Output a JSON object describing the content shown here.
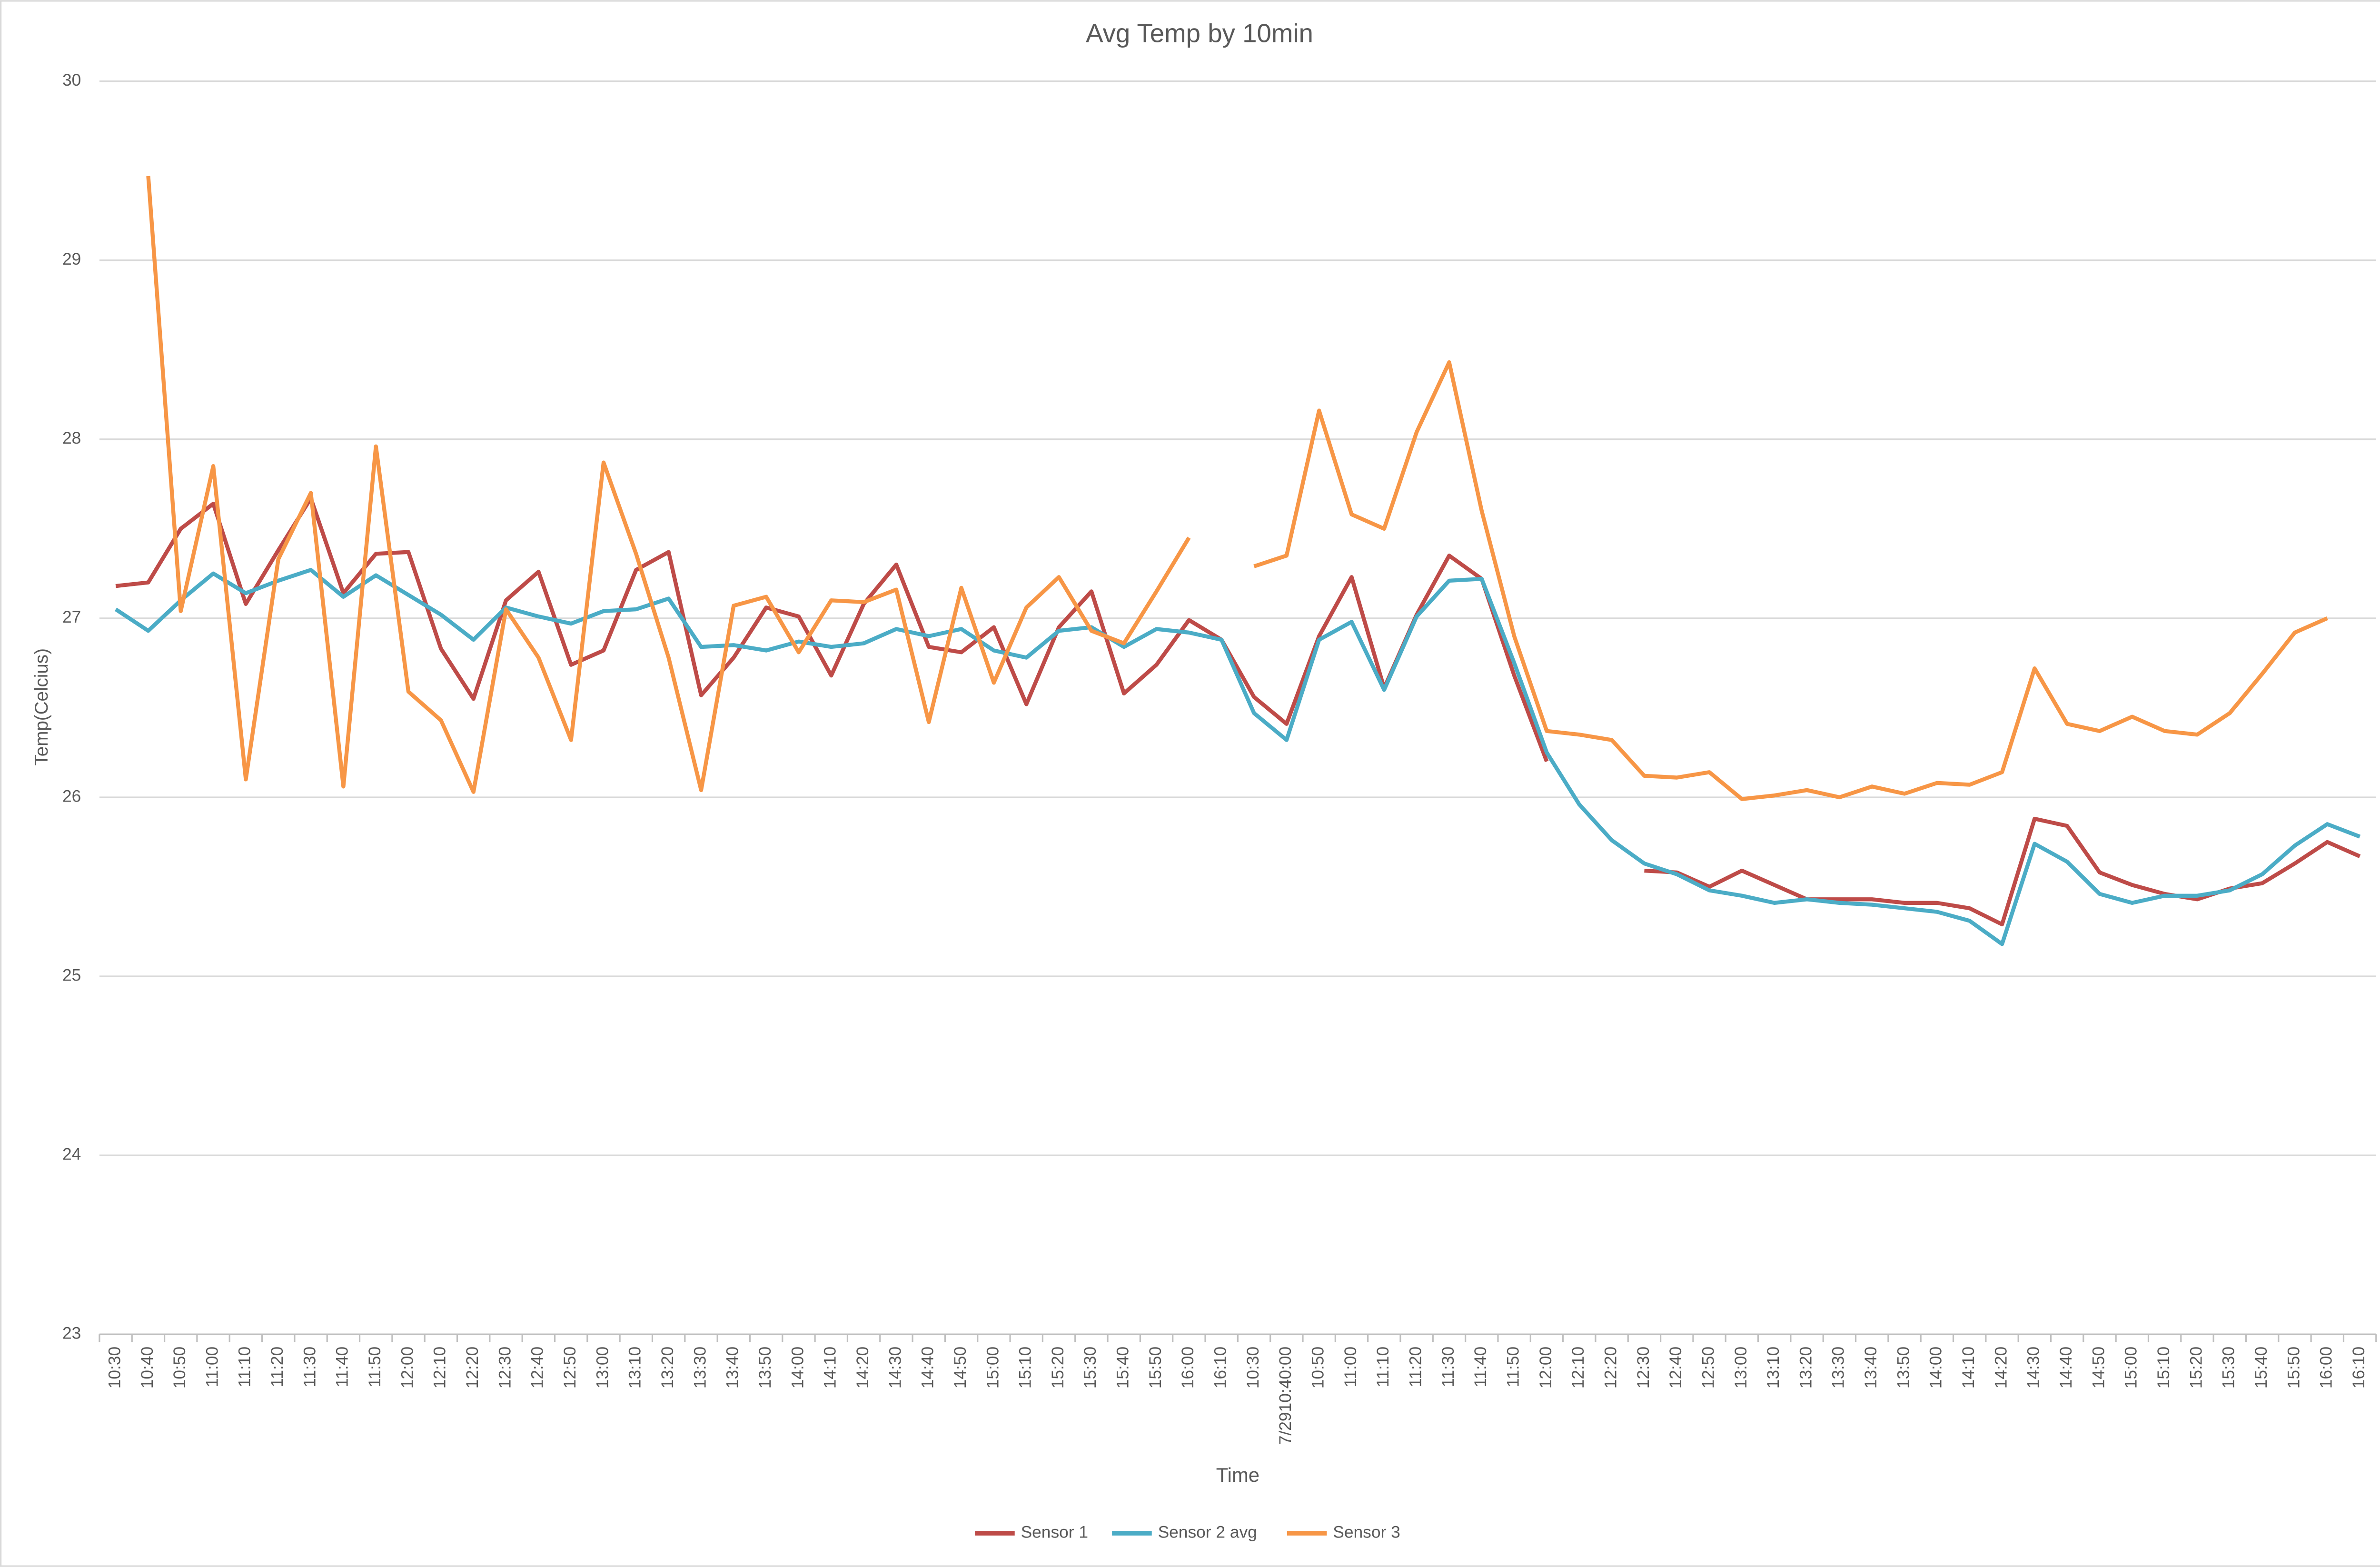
{
  "chart_data": {
    "type": "line",
    "title": "Avg Temp by 10min",
    "x_label": "Time",
    "y_label": "Temp(Celcius)",
    "categories": [
      "10:30",
      "10:40",
      "10:50",
      "11:00",
      "11:10",
      "11:20",
      "11:30",
      "11:40",
      "11:50",
      "12:00",
      "12:10",
      "12:20",
      "12:30",
      "12:40",
      "12:50",
      "13:00",
      "13:10",
      "13:20",
      "13:30",
      "13:40",
      "13:50",
      "14:00",
      "14:10",
      "14:20",
      "14:30",
      "14:40",
      "14:50",
      "15:00",
      "15:10",
      "15:20",
      "15:30",
      "15:40",
      "15:50",
      "16:00",
      "16:10",
      "10:30",
      "7/2910:40:00",
      "10:50",
      "11:00",
      "11:10",
      "11:20",
      "11:30",
      "11:40",
      "11:50",
      "12:00",
      "12:10",
      "12:20",
      "12:30",
      "12:40",
      "12:50",
      "13:00",
      "13:10",
      "13:20",
      "13:30",
      "13:40",
      "13:50",
      "14:00",
      "14:10",
      "14:20",
      "14:30",
      "14:40",
      "14:50",
      "15:00",
      "15:10",
      "15:20",
      "15:30",
      "15:40",
      "15:50",
      "16:00",
      "16:10"
    ],
    "series": [
      {
        "name": "Sensor 1",
        "color": "#be4b48",
        "values": [
          27.18,
          27.2,
          27.5,
          27.64,
          27.08,
          27.38,
          27.67,
          27.14,
          27.36,
          27.37,
          26.83,
          26.55,
          27.1,
          27.26,
          26.74,
          26.82,
          27.27,
          27.37,
          26.57,
          26.78,
          27.06,
          27.01,
          26.68,
          27.08,
          27.3,
          26.84,
          26.81,
          26.95,
          26.52,
          26.95,
          27.15,
          26.58,
          26.74,
          26.99,
          26.88,
          26.56,
          26.41,
          26.9,
          27.23,
          26.61,
          27.02,
          27.35,
          27.22,
          26.68,
          26.2,
          null,
          null,
          25.59,
          25.58,
          25.5,
          25.59,
          25.51,
          25.43,
          25.43,
          25.43,
          25.41,
          25.41,
          25.38,
          25.29,
          25.88,
          25.84,
          25.58,
          25.51,
          25.46,
          25.43,
          25.49,
          25.52,
          25.63,
          25.75,
          25.67
        ]
      },
      {
        "name": "Sensor 2 avg",
        "color": "#4bacc6",
        "values": [
          27.05,
          26.93,
          27.1,
          27.25,
          27.14,
          27.21,
          27.27,
          27.12,
          27.24,
          27.13,
          27.02,
          26.88,
          27.06,
          27.01,
          26.97,
          27.04,
          27.05,
          27.11,
          26.84,
          26.85,
          26.82,
          26.87,
          26.84,
          26.86,
          26.94,
          26.9,
          26.94,
          26.82,
          26.78,
          26.93,
          26.95,
          26.84,
          26.94,
          26.92,
          26.88,
          26.47,
          26.32,
          26.88,
          26.98,
          26.6,
          27.01,
          27.21,
          27.22,
          26.75,
          26.25,
          25.96,
          25.76,
          25.63,
          25.57,
          25.48,
          25.45,
          25.41,
          25.43,
          25.41,
          25.4,
          25.38,
          25.36,
          25.31,
          25.18,
          25.74,
          25.64,
          25.46,
          25.41,
          25.45,
          25.45,
          25.48,
          25.57,
          25.73,
          25.85,
          25.78
        ]
      },
      {
        "name": "Sensor 3",
        "color": "#f79646",
        "values": [
          null,
          29.47,
          27.04,
          27.85,
          26.1,
          27.33,
          27.7,
          26.06,
          27.96,
          26.59,
          26.43,
          26.03,
          27.05,
          26.78,
          26.32,
          27.87,
          27.36,
          26.78,
          26.04,
          27.07,
          27.12,
          26.81,
          27.1,
          27.09,
          27.16,
          26.42,
          27.17,
          26.64,
          27.06,
          27.23,
          26.93,
          26.86,
          27.15,
          27.45,
          null,
          27.29,
          27.35,
          28.16,
          27.58,
          27.5,
          28.04,
          28.43,
          27.6,
          26.9,
          26.37,
          26.35,
          26.32,
          26.12,
          26.11,
          26.14,
          25.99,
          26.01,
          26.04,
          26.0,
          26.06,
          26.02,
          26.08,
          26.07,
          26.14,
          26.72,
          26.41,
          26.37,
          26.45,
          26.37,
          26.35,
          26.47,
          26.69,
          26.92,
          27.0,
          null
        ]
      }
    ],
    "ylim": [
      23,
      30
    ],
    "yticks": [
      23,
      24,
      25,
      26,
      27,
      28,
      29,
      30
    ],
    "grid": true,
    "legend": "bottom"
  }
}
